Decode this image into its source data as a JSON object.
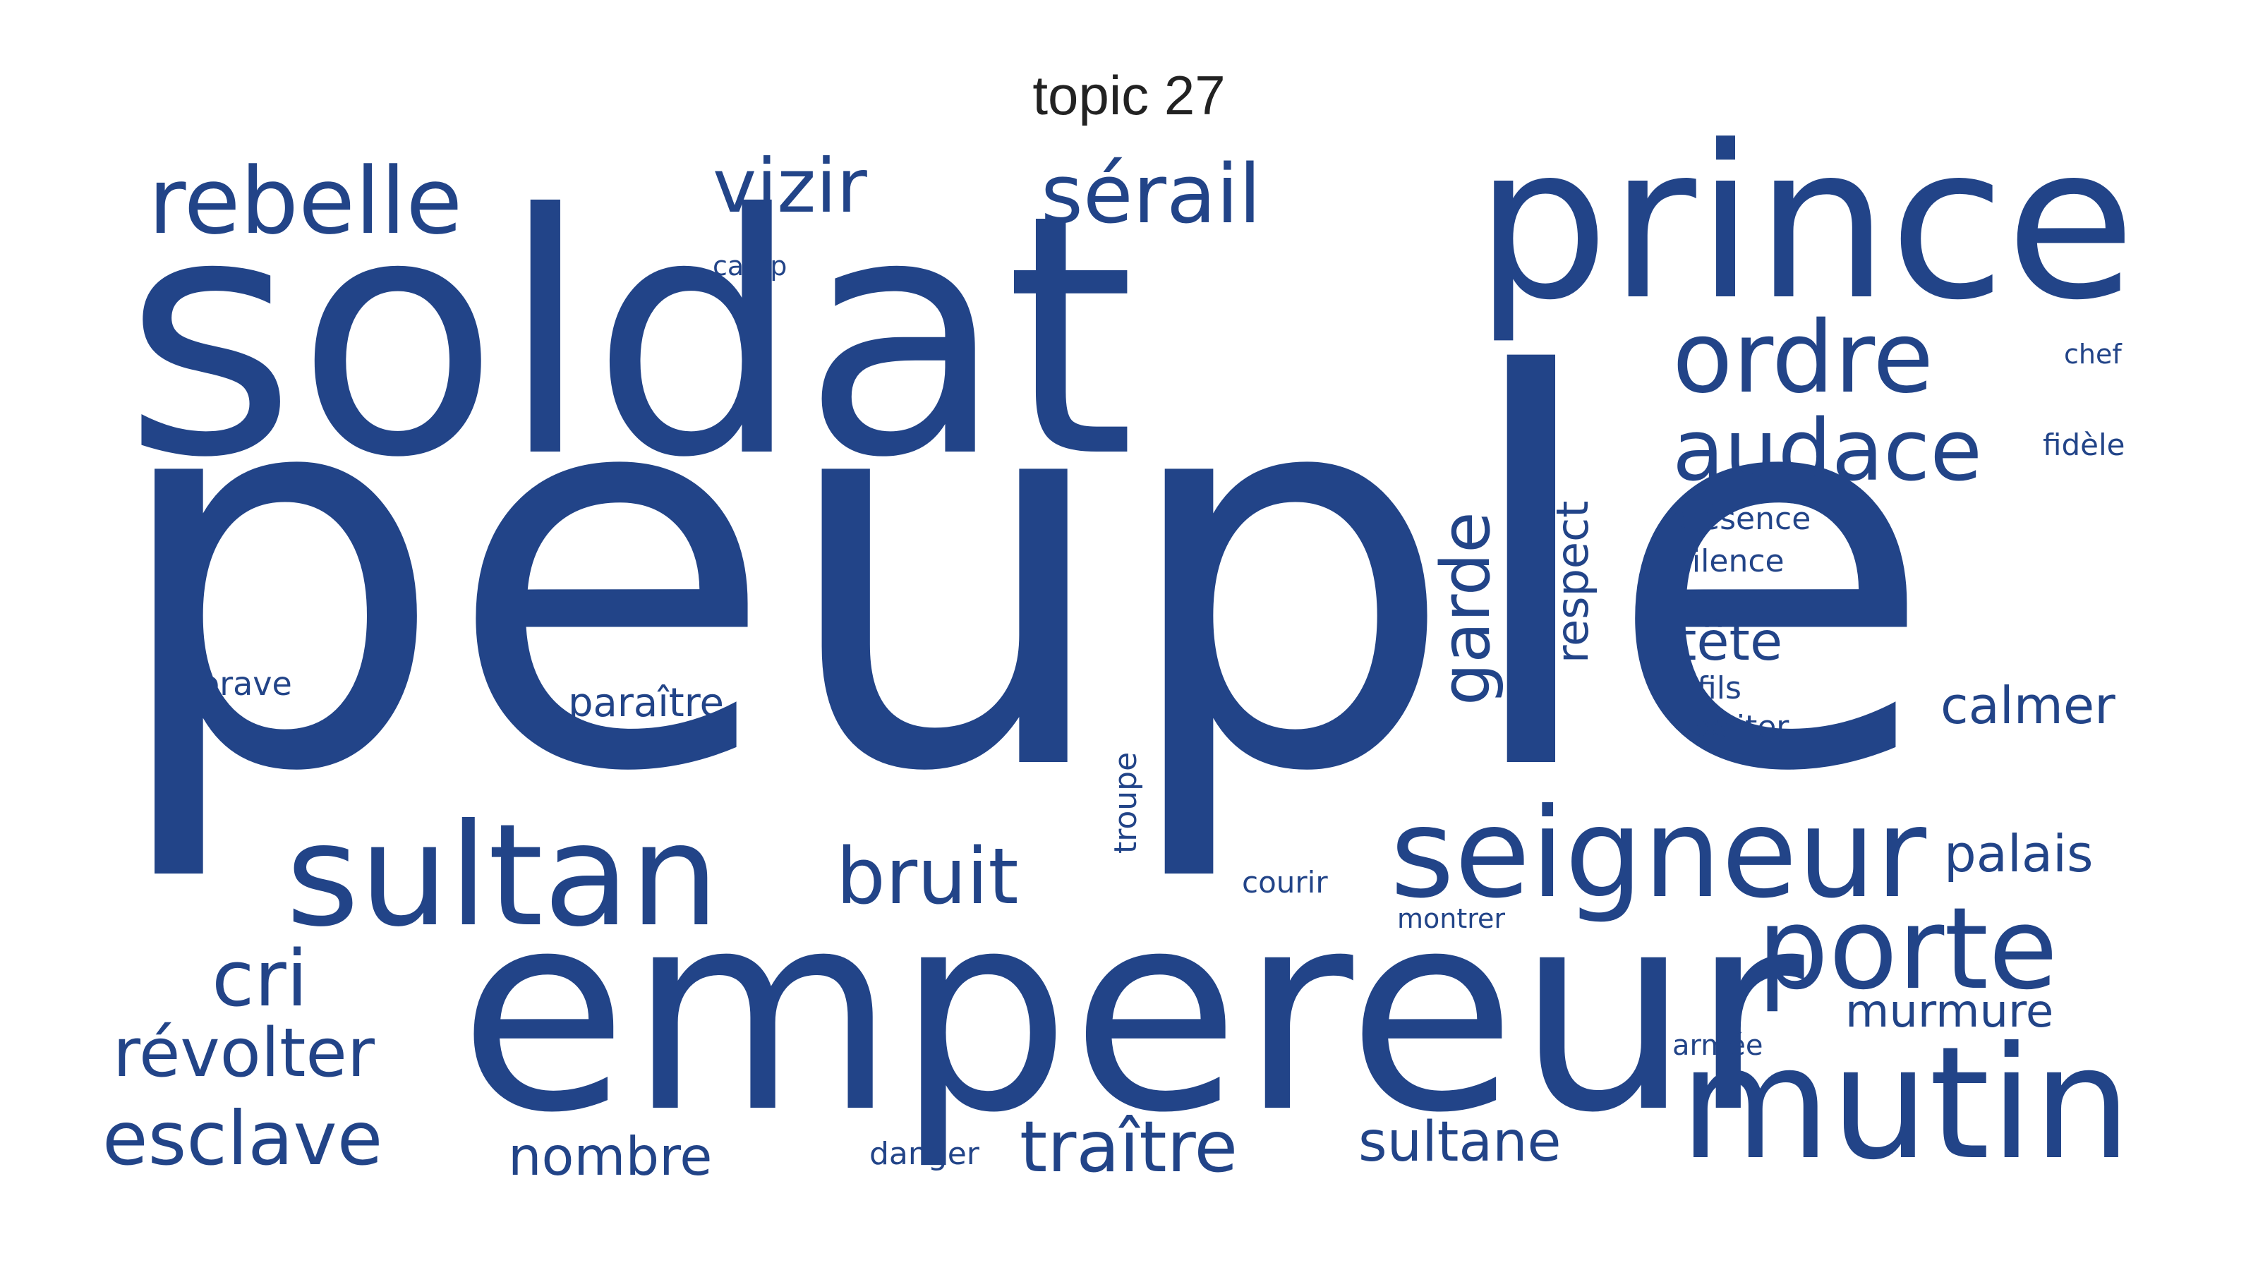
{
  "title": "topic 27",
  "word_color": "#224488",
  "words": [
    "peuple",
    "soldat",
    "empereur",
    "prince",
    "mutin",
    "sultan",
    "seigneur",
    "porte",
    "ordre",
    "audace",
    "rebelle",
    "sérail",
    "vizir",
    "bruit",
    "esclave",
    "révolter",
    "cri",
    "traître",
    "sultane",
    "nombre",
    "garde",
    "respect",
    "tête",
    "calmer",
    "palais",
    "murmure",
    "paraître",
    "brave",
    "troupe",
    "courir",
    "montrer",
    "danger",
    "camp",
    "chef",
    "fidèle",
    "présence",
    "silence",
    "fils",
    "exciter",
    "armée"
  ]
}
